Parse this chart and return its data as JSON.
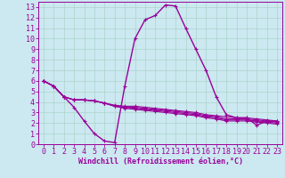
{
  "xlabel": "Windchill (Refroidissement éolien,°C)",
  "bg_color": "#cce8f0",
  "line_color": "#990099",
  "grid_color": "#aad4cc",
  "xlim": [
    -0.5,
    23.5
  ],
  "ylim": [
    0,
    13.5
  ],
  "xticks": [
    0,
    1,
    2,
    3,
    4,
    5,
    6,
    7,
    8,
    9,
    10,
    11,
    12,
    13,
    14,
    15,
    16,
    17,
    18,
    19,
    20,
    21,
    22,
    23
  ],
  "yticks": [
    0,
    1,
    2,
    3,
    4,
    5,
    6,
    7,
    8,
    9,
    10,
    11,
    12,
    13
  ],
  "curves": [
    [
      6.0,
      5.5,
      4.5,
      3.5,
      2.2,
      1.0,
      0.3,
      0.15,
      5.5,
      10.0,
      11.8,
      12.2,
      13.2,
      13.1,
      11.0,
      9.0,
      7.0,
      4.5,
      2.8,
      2.5,
      2.5,
      1.8,
      2.2,
      2.2
    ],
    [
      6.0,
      5.5,
      4.5,
      4.2,
      4.2,
      4.1,
      3.9,
      3.7,
      3.6,
      3.6,
      3.5,
      3.4,
      3.3,
      3.2,
      3.1,
      3.0,
      2.8,
      2.7,
      2.6,
      2.5,
      2.5,
      2.4,
      2.3,
      2.2
    ],
    [
      6.0,
      5.5,
      4.5,
      4.2,
      4.2,
      4.1,
      3.9,
      3.6,
      3.5,
      3.5,
      3.4,
      3.3,
      3.2,
      3.1,
      3.0,
      2.9,
      2.7,
      2.6,
      2.4,
      2.4,
      2.4,
      2.3,
      2.2,
      2.1
    ],
    [
      6.0,
      5.5,
      4.5,
      4.2,
      4.2,
      4.1,
      3.9,
      3.6,
      3.5,
      3.4,
      3.3,
      3.2,
      3.1,
      3.0,
      2.9,
      2.8,
      2.6,
      2.5,
      2.3,
      2.3,
      2.3,
      2.2,
      2.1,
      2.0
    ],
    [
      6.0,
      5.5,
      4.5,
      4.2,
      4.2,
      4.1,
      3.9,
      3.6,
      3.4,
      3.3,
      3.2,
      3.1,
      3.0,
      2.9,
      2.8,
      2.7,
      2.5,
      2.4,
      2.2,
      2.2,
      2.2,
      2.1,
      2.0,
      1.9
    ]
  ],
  "tick_fontsize": 6,
  "xlabel_fontsize": 6
}
